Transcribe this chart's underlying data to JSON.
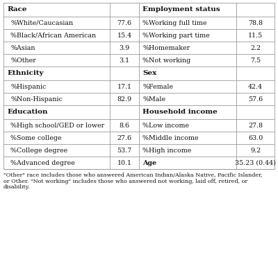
{
  "rows_def": [
    {
      "ll": "Race",
      "lv": "",
      "rl": "Employment status",
      "rv": "",
      "is_header": true
    },
    {
      "ll": "%White/Caucasian",
      "lv": "77.6",
      "rl": "%Working full time",
      "rv": "78.8",
      "is_header": false
    },
    {
      "ll": "%Black/African American",
      "lv": "15.4",
      "rl": "%Working part time",
      "rv": "11.5",
      "is_header": false
    },
    {
      "ll": "%Asian",
      "lv": "3.9",
      "rl": "%Homemaker",
      "rv": "2.2",
      "is_header": false
    },
    {
      "ll": "%Other",
      "lv": "3.1",
      "rl": "%Not working",
      "rv": "7.5",
      "is_header": false
    },
    {
      "ll": "Ethnicity",
      "lv": "",
      "rl": "Sex",
      "rv": "",
      "is_header": true
    },
    {
      "ll": "%Hispanic",
      "lv": "17.1",
      "rl": "%Female",
      "rv": "42.4",
      "is_header": false
    },
    {
      "ll": "%Non-Hispanic",
      "lv": "82.9",
      "rl": "%Male",
      "rv": "57.6",
      "is_header": false
    },
    {
      "ll": "Education",
      "lv": "",
      "rl": "Household income",
      "rv": "",
      "is_header": true
    },
    {
      "ll": "%High school/GED or lower",
      "lv": "8.6",
      "rl": "%Low income",
      "rv": "27.8",
      "is_header": false
    },
    {
      "ll": "%Some college",
      "lv": "27.6",
      "rl": "%Middle income",
      "rv": "63.0",
      "is_header": false
    },
    {
      "ll": "%College degree",
      "lv": "53.7",
      "rl": "%High income",
      "rv": "9.2",
      "is_header": false
    },
    {
      "ll": "%Advanced degree",
      "lv": "10.1",
      "rl": "Age",
      "rv": "35.23 (0.44)",
      "is_header": false
    }
  ],
  "footnote_line1": "\"Other\" race includes those who answered American Indian/Alaska Native, Pacific Islander,",
  "footnote_line2": "or Other. \"Not working\" includes those who answered not working, laid off, retired, or",
  "footnote_line3": "disability.",
  "bg_color": "#ffffff",
  "line_color": "#999999",
  "text_color": "#111111",
  "font_size": 6.8,
  "header_font_size": 7.5,
  "footnote_font_size": 5.8
}
